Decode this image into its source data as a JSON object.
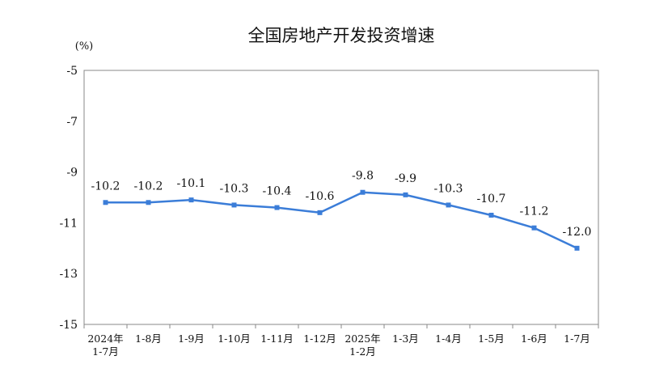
{
  "chart_data": {
    "type": "line",
    "title": "全国房地产开发投资增速",
    "unit_label": "(%)",
    "xlabel": "",
    "ylabel": "",
    "ylim": [
      -15,
      -5
    ],
    "yticks": [
      "-5",
      "-7",
      "-9",
      "-11",
      "-13",
      "-15"
    ],
    "categories": [
      [
        "2024年",
        "1-7月"
      ],
      [
        "1-8月"
      ],
      [
        "1-9月"
      ],
      [
        "1-10月"
      ],
      [
        "1-11月"
      ],
      [
        "1-12月"
      ],
      [
        "2025年",
        "1-2月"
      ],
      [
        "1-3月"
      ],
      [
        "1-4月"
      ],
      [
        "1-5月"
      ],
      [
        "1-6月"
      ],
      [
        "1-7月"
      ]
    ],
    "series": [
      {
        "values": [
          -10.2,
          -10.2,
          -10.1,
          -10.3,
          -10.4,
          -10.6,
          -9.8,
          -9.9,
          -10.3,
          -10.7,
          -11.2,
          -12.0
        ],
        "labels": [
          "-10.2",
          "-10.2",
          "-10.1",
          "-10.3",
          "-10.4",
          "-10.6",
          "-9.8",
          "-9.9",
          "-10.3",
          "-10.7",
          "-11.2",
          "-12.0"
        ]
      }
    ],
    "grid": false,
    "line_color": "#3b7dd8"
  }
}
